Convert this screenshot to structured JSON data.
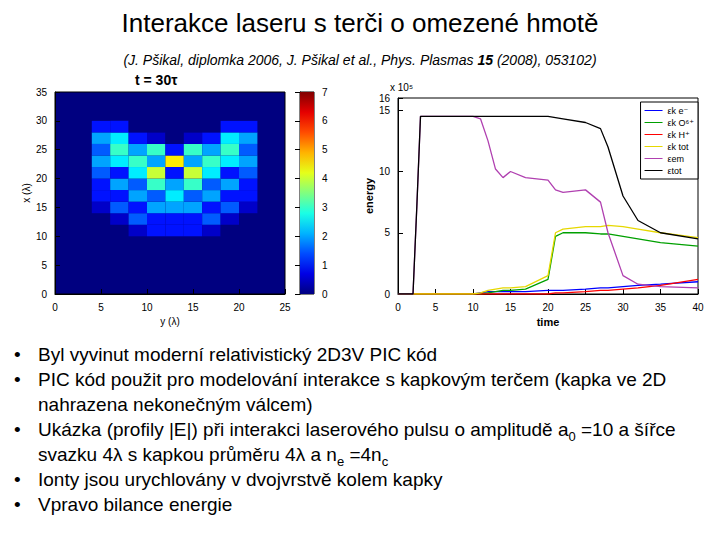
{
  "slide": {
    "title": "Interakce laseru s terči o omezené hmotě",
    "subtitle": [
      {
        "text": "(J. Pšikal, diplomka 2006, J. Pšikal et al., Phys. Plasmas "
      },
      {
        "text": "15",
        "bold": true
      },
      {
        "text": " (2008), 053102)"
      }
    ],
    "bullets": [
      [
        {
          "text": "Byl vyvinut moderní relativistický 2D3V PIC kód"
        }
      ],
      [
        {
          "text": "PIC kód použit pro modelování interakce s kapkovým terčem (kapka ve 2D nahrazena nekonečným válcem)"
        }
      ],
      [
        {
          "text": "Ukázka (profily |E|) při interakci laserového pulsu o amplitudě a"
        },
        {
          "text": "0",
          "sub": true
        },
        {
          "text": " =10 a šířce svazku 4λ s kapkou průměru 4λ a n"
        },
        {
          "text": "e",
          "sub": true
        },
        {
          "text": " =4n"
        },
        {
          "text": "c",
          "sub": true
        }
      ],
      [
        {
          "text": "Ionty jsou urychlovány v dvojvrstvě kolem kapky"
        }
      ],
      [
        {
          "text": "Vpravo bilance energie"
        }
      ]
    ]
  },
  "chart_data": [
    {
      "type": "heatmap",
      "title": "t = 30τ",
      "x_label": "y (λ)",
      "y_label": "x (λ)",
      "xlim": [
        0,
        25
      ],
      "xticks": [
        0,
        5,
        10,
        15,
        20,
        25
      ],
      "ylim": [
        0,
        35
      ],
      "yticks": [
        0,
        5,
        10,
        15,
        20,
        25,
        30,
        35
      ],
      "grid": false,
      "cells": {
        "x0": 4,
        "y0": 10,
        "cell": 2,
        "rows": [
          [
            0,
            0,
            0.5,
            1,
            1,
            1,
            0.5,
            0,
            0
          ],
          [
            0,
            0.5,
            1.5,
            1,
            1,
            1,
            1.5,
            0.5,
            0
          ],
          [
            0.5,
            1.5,
            1,
            2,
            2,
            2,
            1,
            1.5,
            0.5
          ],
          [
            1,
            1,
            2,
            1.5,
            2.5,
            1.5,
            2,
            1,
            1
          ],
          [
            1,
            2,
            1.5,
            3,
            2,
            3,
            1.5,
            2,
            1
          ],
          [
            1.5,
            1,
            2.5,
            4,
            1,
            4,
            2.5,
            1,
            1.5
          ],
          [
            2,
            2.5,
            3,
            2,
            4.5,
            2,
            3,
            2.5,
            2
          ],
          [
            1.5,
            3,
            2,
            3,
            1,
            3,
            2,
            3,
            1.5
          ],
          [
            2,
            2.5,
            1,
            0.5,
            0,
            0.5,
            1,
            2.5,
            2
          ],
          [
            1,
            1,
            0,
            0,
            0,
            0,
            0,
            1,
            1
          ]
        ]
      },
      "colorbar": {
        "range": [
          0,
          7
        ],
        "ticks": [
          0,
          1,
          2,
          3,
          4,
          5,
          6,
          7
        ]
      }
    },
    {
      "type": "line",
      "x_label": "time",
      "y_label": "energy",
      "annotations": [
        "x 10⁵"
      ],
      "xlim": [
        0,
        40
      ],
      "xticks": [
        0,
        5,
        10,
        15,
        20,
        25,
        30,
        35,
        40
      ],
      "ylim": [
        0,
        16
      ],
      "yticks": [
        0,
        5,
        10,
        15
      ],
      "grid": false,
      "legend": "upper right",
      "x": [
        0,
        2,
        2.5,
        3,
        5,
        10,
        11,
        12,
        13,
        14,
        15,
        17,
        20,
        21,
        22,
        25,
        27,
        28,
        30,
        32,
        35,
        40
      ],
      "series": [
        {
          "name": "εk e⁻",
          "color": "#0000ff",
          "values": [
            0,
            0,
            0,
            0,
            0,
            0,
            0.1,
            0.2,
            0.2,
            0.2,
            0.2,
            0.2,
            0.3,
            0.3,
            0.3,
            0.4,
            0.5,
            0.5,
            0.6,
            0.7,
            0.8,
            1
          ]
        },
        {
          "name": "εk O⁶⁺",
          "color": "#00a000",
          "values": [
            0,
            0,
            0,
            0,
            0,
            0,
            0,
            0.1,
            0.2,
            0.3,
            0.3,
            0.4,
            1.2,
            4.7,
            5,
            5,
            4.9,
            4.9,
            4.7,
            4.5,
            4.2,
            3.9
          ]
        },
        {
          "name": "εk H⁺",
          "color": "#ff0000",
          "values": [
            0,
            0,
            0,
            0,
            0,
            0,
            0,
            0,
            0,
            0,
            0,
            0,
            0,
            0.1,
            0.1,
            0.2,
            0.3,
            0.3,
            0.4,
            0.5,
            0.7,
            1.2
          ]
        },
        {
          "name": "εk tot",
          "color": "#e6d800",
          "values": [
            0,
            0,
            0,
            0,
            0,
            0,
            0.1,
            0.3,
            0.4,
            0.5,
            0.5,
            0.6,
            1.5,
            5,
            5.3,
            5.5,
            5.5,
            5.6,
            5.5,
            5.3,
            5,
            4.6
          ]
        },
        {
          "name": "εem",
          "color": "#b040b0",
          "values": [
            0,
            0,
            7,
            14.5,
            14.5,
            14.5,
            14.3,
            12.5,
            10.2,
            9.5,
            10,
            9.5,
            9.3,
            8.5,
            8.3,
            8.5,
            7.5,
            5,
            1.5,
            0.8,
            0.6,
            0.5
          ]
        },
        {
          "name": "εtot",
          "color": "#000000",
          "values": [
            0,
            0,
            7,
            14.5,
            14.5,
            14.5,
            14.5,
            14.5,
            14.5,
            14.5,
            14.5,
            14.5,
            14.5,
            14.4,
            14.3,
            14,
            13.5,
            12,
            8,
            6,
            5,
            4.5
          ]
        }
      ]
    }
  ]
}
